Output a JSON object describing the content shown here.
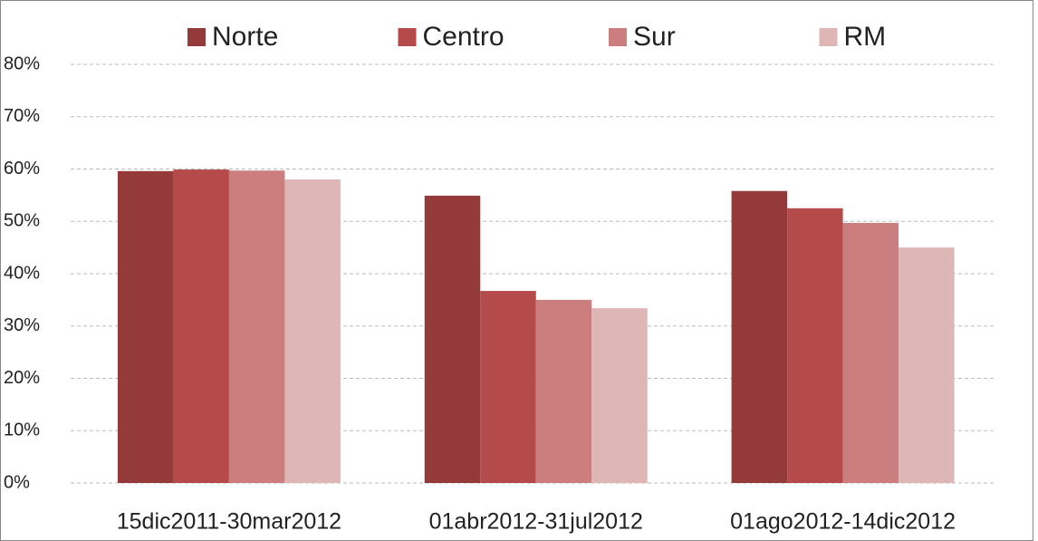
{
  "chart_data": {
    "type": "bar",
    "categories": [
      "15dic2011-30mar2012",
      "01abr2012-31jul2012",
      "01ago2012-14dic2012"
    ],
    "series": [
      {
        "name": "Norte",
        "color": "#953a3a",
        "values": [
          59.6,
          54.9,
          55.8
        ]
      },
      {
        "name": "Centro",
        "color": "#b54a4a",
        "values": [
          59.9,
          36.7,
          52.5
        ]
      },
      {
        "name": "Sur",
        "color": "#cc7d7d",
        "values": [
          59.7,
          35.0,
          49.7
        ]
      },
      {
        "name": "RM",
        "color": "#dfb6b6",
        "values": [
          58.0,
          33.4,
          45.0
        ]
      }
    ],
    "ylim": [
      0,
      80
    ],
    "yticks": [
      {
        "value": 0,
        "label": "0%"
      },
      {
        "value": 10,
        "label": "10%"
      },
      {
        "value": 20,
        "label": "20%"
      },
      {
        "value": 30,
        "label": "30%"
      },
      {
        "value": 40,
        "label": "40%"
      },
      {
        "value": 50,
        "label": "50%"
      },
      {
        "value": 60,
        "label": "60%"
      },
      {
        "value": 70,
        "label": "70%"
      },
      {
        "value": 80,
        "label": "80%"
      }
    ],
    "grid": true,
    "legend": "top"
  }
}
